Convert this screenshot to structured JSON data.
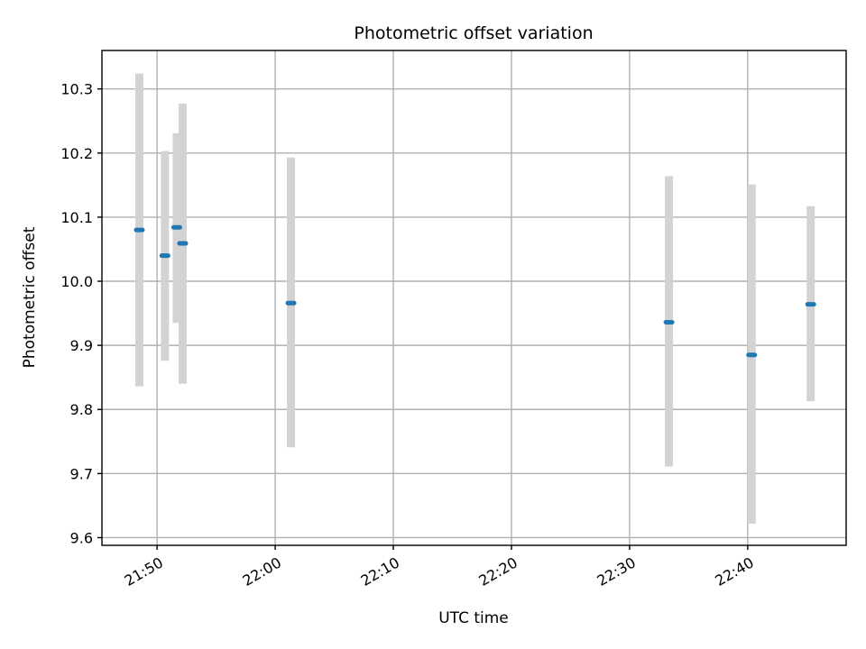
{
  "chart_data": {
    "type": "scatter",
    "title": "Photometric offset variation",
    "xlabel": "UTC time",
    "ylabel": "Photometric offset",
    "x_ticks": [
      "21:50",
      "22:00",
      "22:10",
      "22:20",
      "22:30",
      "22:40"
    ],
    "y_ticks": [
      "9.6",
      "9.7",
      "9.8",
      "9.9",
      "10.0",
      "10.1",
      "10.2",
      "10.3"
    ],
    "xlim": [
      "21:45:20",
      "22:48:20"
    ],
    "ylim": [
      9.588,
      10.36
    ],
    "grid": true,
    "marker_color": "#1f77b4",
    "errorbar_color": "#d3d3d3",
    "points": [
      {
        "time": "21:48:30",
        "y": 10.08,
        "yerr_low": 9.836,
        "yerr_high": 10.324
      },
      {
        "time": "21:50:40",
        "y": 10.04,
        "yerr_low": 9.876,
        "yerr_high": 10.203
      },
      {
        "time": "21:51:40",
        "y": 10.084,
        "yerr_low": 9.935,
        "yerr_high": 10.231
      },
      {
        "time": "21:52:10",
        "y": 10.059,
        "yerr_low": 9.84,
        "yerr_high": 10.277
      },
      {
        "time": "22:01:20",
        "y": 9.966,
        "yerr_low": 9.741,
        "yerr_high": 10.193
      },
      {
        "time": "22:33:20",
        "y": 9.936,
        "yerr_low": 9.711,
        "yerr_high": 10.164
      },
      {
        "time": "22:40:20",
        "y": 9.885,
        "yerr_low": 9.622,
        "yerr_high": 10.151
      },
      {
        "time": "22:45:20",
        "y": 9.964,
        "yerr_low": 9.813,
        "yerr_high": 10.117
      }
    ]
  }
}
